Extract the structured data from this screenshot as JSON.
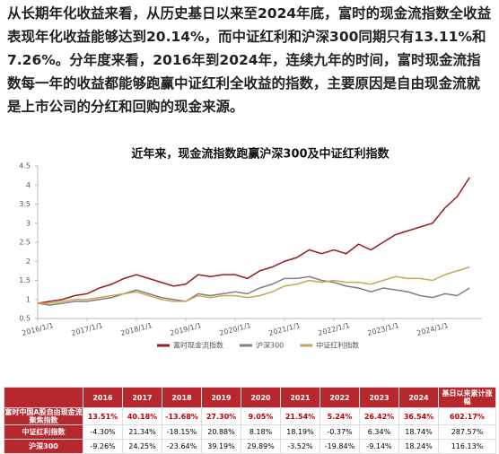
{
  "paragraph": "从长期年化收益来看，从历史基日以来至2024年底，富时的现金流指数全收益表现年化收益能够达到20.14%，而中证红利和沪深300同期只有13.11%和7.26%。分年度来看，2016年到2024年，连续九年的时间，富时现金流指数每一年的收益都能够跑赢中证红利全收益的指数，主要原因是自由现金流就是上市公司的分红和回购的现金来源。",
  "chart_data": {
    "type": "line",
    "title": "近年来，现金流指数跑赢沪深300及中证红利指数",
    "x": [
      2016,
      2016.25,
      2016.5,
      2016.75,
      2017,
      2017.25,
      2017.5,
      2017.75,
      2018,
      2018.25,
      2018.5,
      2018.75,
      2019,
      2019.25,
      2019.5,
      2019.75,
      2020,
      2020.25,
      2020.5,
      2020.75,
      2021,
      2021.25,
      2021.5,
      2021.75,
      2022,
      2022.25,
      2022.5,
      2022.75,
      2023,
      2023.25,
      2023.5,
      2023.75,
      2024,
      2024.25,
      2024.5,
      2024.75
    ],
    "series": [
      {
        "name": "富时现金流指数",
        "color": "#9b1b1e",
        "values": [
          0.9,
          0.95,
          1.0,
          1.1,
          1.15,
          1.3,
          1.4,
          1.55,
          1.65,
          1.55,
          1.45,
          1.35,
          1.4,
          1.65,
          1.6,
          1.65,
          1.65,
          1.55,
          1.75,
          1.85,
          2.0,
          2.1,
          2.3,
          2.2,
          2.3,
          2.2,
          2.45,
          2.3,
          2.5,
          2.7,
          2.8,
          2.9,
          3.0,
          3.4,
          3.7,
          4.2
        ]
      },
      {
        "name": "沪深300",
        "color": "#7f7f7f",
        "values": [
          0.9,
          0.85,
          0.9,
          0.95,
          0.95,
          1.0,
          1.05,
          1.15,
          1.25,
          1.15,
          1.05,
          1.0,
          0.95,
          1.15,
          1.1,
          1.15,
          1.2,
          1.15,
          1.3,
          1.4,
          1.55,
          1.55,
          1.6,
          1.5,
          1.45,
          1.35,
          1.3,
          1.2,
          1.3,
          1.25,
          1.2,
          1.1,
          1.05,
          1.15,
          1.1,
          1.3
        ]
      },
      {
        "name": "中证红利指数",
        "color": "#c9a55a",
        "values": [
          0.9,
          0.9,
          0.95,
          1.0,
          1.0,
          1.05,
          1.1,
          1.15,
          1.2,
          1.1,
          1.0,
          0.95,
          0.95,
          1.1,
          1.05,
          1.1,
          1.1,
          1.05,
          1.1,
          1.2,
          1.35,
          1.4,
          1.5,
          1.45,
          1.5,
          1.45,
          1.45,
          1.4,
          1.5,
          1.6,
          1.55,
          1.55,
          1.5,
          1.65,
          1.75,
          1.85
        ]
      }
    ],
    "xlim": [
      2016,
      2025
    ],
    "xticks": [
      {
        "value": 2016,
        "label": "2016/1/1"
      },
      {
        "value": 2017,
        "label": "2017/1/1"
      },
      {
        "value": 2018,
        "label": "2018/1/1"
      },
      {
        "value": 2019,
        "label": "2019/1/1"
      },
      {
        "value": 2020,
        "label": "2020/1/1"
      },
      {
        "value": 2021,
        "label": "2021/1/1"
      },
      {
        "value": 2022,
        "label": "2022/1/1"
      },
      {
        "value": 2023,
        "label": "2023/1/1"
      },
      {
        "value": 2024,
        "label": "2024/1/1"
      }
    ],
    "ylim": [
      0.5,
      4.5
    ],
    "yticks": [
      0.5,
      1,
      1.5,
      2,
      2.5,
      3,
      3.5,
      4,
      4.5
    ]
  },
  "table": {
    "header": [
      "2016",
      "2017",
      "2018",
      "2019",
      "2020",
      "2021",
      "2022",
      "2023",
      "2024",
      "基日以来累计涨幅"
    ],
    "rows": [
      [
        "富时中国A股自由现金流聚焦指数",
        "13.51%",
        "40.18%",
        "-13.68%",
        "27.30%",
        "9.05%",
        "21.54%",
        "5.24%",
        "26.42%",
        "36.54%",
        "602.17%"
      ],
      [
        "中证红利指数",
        "-4.30%",
        "21.34%",
        "-18.15%",
        "20.88%",
        "8.18%",
        "18.19%",
        "-0.37%",
        "6.34%",
        "18.74%",
        "287.57%"
      ],
      [
        "沪深300",
        "-9.26%",
        "24.25%",
        "-23.64%",
        "39.19%",
        "29.89%",
        "-3.52%",
        "-19.84%",
        "-9.14%",
        "18.24%",
        "116.13%"
      ]
    ]
  }
}
